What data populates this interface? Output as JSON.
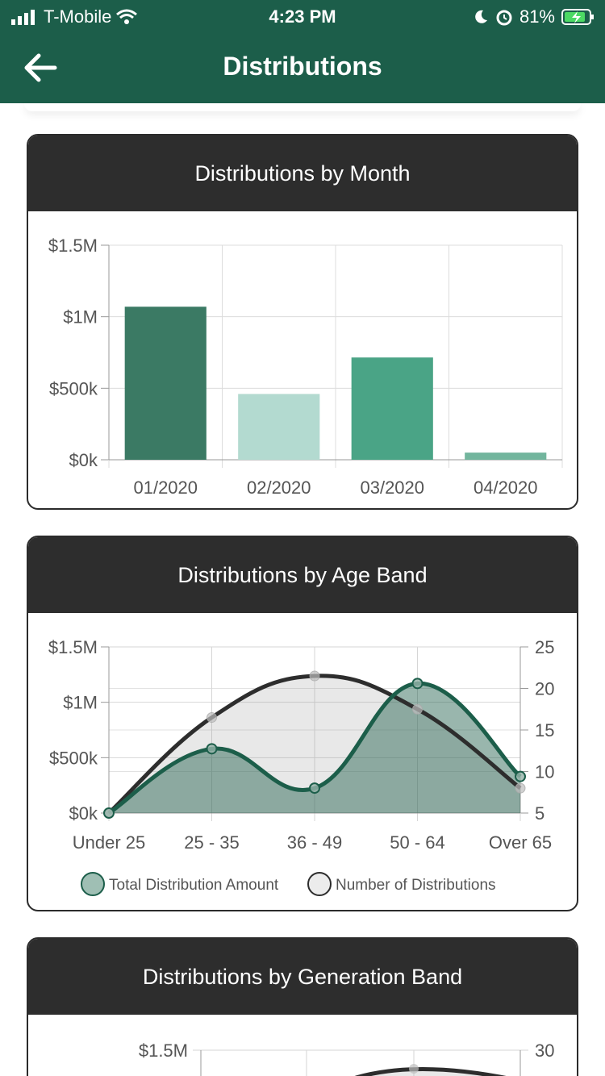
{
  "status_bar": {
    "carrier": "T-Mobile",
    "time": "4:23 PM",
    "battery": "81%"
  },
  "header": {
    "title": "Distributions",
    "back_icon": "arrow-left-icon",
    "color": "#1c5e4a"
  },
  "cards": {
    "month": {
      "title": "Distributions by Month"
    },
    "age": {
      "title": "Distributions by Age Band",
      "legend": [
        "Total Distribution Amount",
        "Number of Distributions"
      ]
    },
    "generation": {
      "title": "Distributions by Generation Band"
    }
  },
  "chart_data": [
    {
      "type": "bar",
      "title": "Distributions by Month",
      "categories": [
        "01/2020",
        "02/2020",
        "03/2020",
        "04/2020"
      ],
      "values": [
        1070000,
        460000,
        715000,
        50000
      ],
      "colors": [
        "#3b7a64",
        "#b3dad0",
        "#4aa486",
        "#72b59d"
      ],
      "ylim": [
        0,
        1500000
      ],
      "yticks": [
        "$0k",
        "$500k",
        "$1M",
        "$1.5M"
      ],
      "grid": true
    },
    {
      "type": "area",
      "title": "Distributions by Age Band",
      "categories": [
        "Under 25",
        "25 - 35",
        "36 - 49",
        "50 - 64",
        "Over 65"
      ],
      "series": [
        {
          "name": "Total Distribution Amount",
          "values": [
            0,
            580000,
            225000,
            1170000,
            330000
          ],
          "axis": "left",
          "color": "#1c5e4a"
        },
        {
          "name": "Number of Distributions",
          "values": [
            5,
            16.5,
            21.5,
            17.5,
            8
          ],
          "axis": "right",
          "color": "#2d2d2d"
        }
      ],
      "ylim_left": [
        0,
        1500000
      ],
      "yticks_left": [
        "$0k",
        "$500k",
        "$1M",
        "$1.5M"
      ],
      "ylim_right": [
        5,
        25
      ],
      "yticks_right": [
        "5",
        "10",
        "15",
        "20",
        "25"
      ],
      "legend": "bottom",
      "grid": true
    },
    {
      "type": "area",
      "title": "Distributions by Generation Band",
      "yticks_left": [
        "$1.5M"
      ],
      "yticks_right": [
        "30"
      ]
    }
  ]
}
